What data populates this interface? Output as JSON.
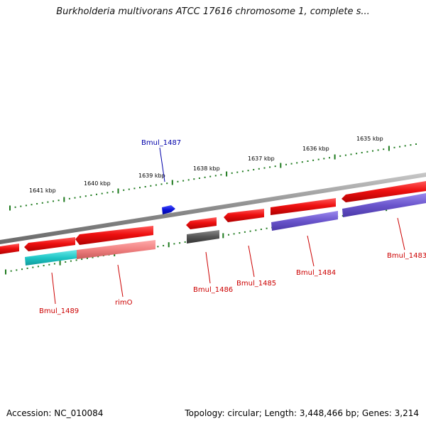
{
  "title": "Burkholderia multivorans ATCC 17616 chromosome 1, complete s...",
  "footer": {
    "accession": "Accession: NC_010084",
    "topology": "Topology: circular; Length: 3,448,466 bp; Genes: 3,214"
  },
  "colors": {
    "backbone": "#8c8c8c",
    "ticks": "#1e7a1e",
    "gene_red": "#e8131b",
    "gene_pink": "#f08080",
    "gene_cyan": "#22c8c8",
    "gene_purple": "#6a55cc",
    "gene_gray": "#555555",
    "gene_blue": "#0a10d8",
    "label_red": "#cc0000",
    "label_blue": "#0000aa"
  },
  "scale_labels": [
    "1641 kbp",
    "1640 kbp",
    "1639 kbp",
    "1638 kbp",
    "1637 kbp",
    "1636 kbp",
    "1635 kbp"
  ],
  "gene_labels": [
    {
      "text": "Bmul_1487",
      "color": "blue"
    },
    {
      "text": "Bmul_1489",
      "color": "red"
    },
    {
      "text": "rimO",
      "color": "red"
    },
    {
      "text": "Bmul_1486",
      "color": "red"
    },
    {
      "text": "Bmul_1485",
      "color": "red"
    },
    {
      "text": "Bmul_1484",
      "color": "red"
    },
    {
      "text": "Bmul_1483",
      "color": "red"
    }
  ]
}
